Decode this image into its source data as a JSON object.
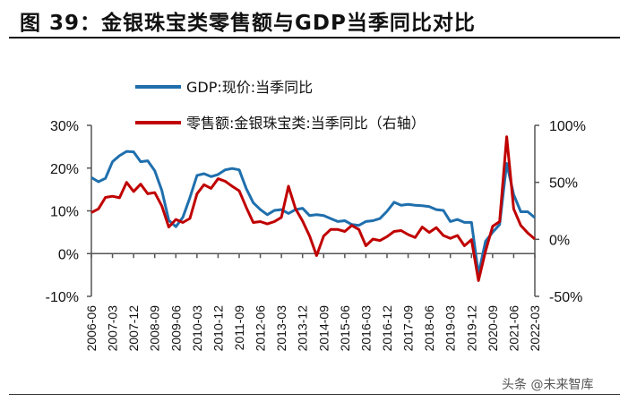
{
  "title": "图 39：金银珠宝类零售额与GDP当季同比对比",
  "watermark": "头条 @未来智库",
  "chart_data": {
    "type": "line",
    "title": "图 39：金银珠宝类零售额与GDP当季同比对比",
    "x": [
      "2006-06",
      "2006-09",
      "2006-12",
      "2007-03",
      "2007-06",
      "2007-09",
      "2007-12",
      "2008-03",
      "2008-06",
      "2008-09",
      "2008-12",
      "2009-03",
      "2009-06",
      "2009-09",
      "2009-12",
      "2010-03",
      "2010-06",
      "2010-09",
      "2010-12",
      "2011-03",
      "2011-06",
      "2011-09",
      "2011-12",
      "2012-03",
      "2012-06",
      "2012-09",
      "2012-12",
      "2013-03",
      "2013-06",
      "2013-09",
      "2013-12",
      "2014-03",
      "2014-06",
      "2014-09",
      "2014-12",
      "2015-03",
      "2015-06",
      "2015-09",
      "2015-12",
      "2016-03",
      "2016-06",
      "2016-09",
      "2016-12",
      "2017-03",
      "2017-06",
      "2017-09",
      "2017-12",
      "2018-03",
      "2018-06",
      "2018-09",
      "2018-12",
      "2019-03",
      "2019-06",
      "2019-09",
      "2019-12",
      "2020-03",
      "2020-06",
      "2020-09",
      "2020-12",
      "2021-03",
      "2021-06",
      "2021-09",
      "2021-12",
      "2022-03"
    ],
    "x_tick_labels": [
      "2006-06",
      "2007-03",
      "2007-12",
      "2008-09",
      "2009-06",
      "2010-03",
      "2010-12",
      "2011-09",
      "2012-06",
      "2013-03",
      "2013-12",
      "2014-09",
      "2015-06",
      "2016-03",
      "2016-12",
      "2017-09",
      "2018-06",
      "2019-03",
      "2019-12",
      "2020-09",
      "2021-06",
      "2022-03"
    ],
    "y_left": {
      "ylim": [
        -10,
        30
      ],
      "ticks": [
        "-10%",
        "0%",
        "10%",
        "20%",
        "30%"
      ]
    },
    "y_right": {
      "ylim": [
        -50,
        100
      ],
      "ticks": [
        "-50%",
        "0%",
        "50%",
        "100%"
      ]
    },
    "grid": false,
    "legend_position": "top",
    "series": [
      {
        "name": "GDP:现价:当季同比",
        "axis": "left",
        "color": "#1f6fad",
        "values": [
          17.8,
          16.8,
          17.6,
          21.5,
          22.9,
          23.9,
          23.8,
          21.5,
          21.7,
          19.4,
          14.8,
          7.8,
          6.3,
          8.5,
          13.1,
          18.3,
          18.7,
          18.0,
          18.5,
          19.6,
          19.9,
          19.6,
          15.2,
          11.9,
          10.3,
          9.1,
          10.1,
          10.3,
          9.4,
          10.3,
          10.6,
          8.9,
          9.1,
          8.9,
          8.2,
          7.5,
          7.7,
          6.8,
          6.6,
          7.5,
          7.7,
          8.2,
          9.9,
          12.0,
          11.3,
          11.5,
          11.3,
          11.2,
          11.0,
          10.3,
          10.1,
          7.5,
          8.0,
          7.3,
          7.3,
          -4.8,
          2.9,
          5.0,
          6.8,
          21.1,
          13.8,
          9.8,
          9.8,
          8.4
        ]
      },
      {
        "name": "零售额:金银珠宝类:当季同比（右轴）",
        "axis": "right",
        "color": "#c00000",
        "values": [
          23.5,
          26.7,
          36.8,
          37.8,
          36.5,
          50,
          42,
          48.4,
          40,
          41,
          29.4,
          10.8,
          17.5,
          14.8,
          18.3,
          40,
          47.9,
          44.7,
          53.2,
          51,
          46.6,
          42.6,
          28,
          14.8,
          15.6,
          13.5,
          15.6,
          19.3,
          46.6,
          26.7,
          16.1,
          2.9,
          -14.3,
          2.9,
          8.7,
          8.7,
          6.9,
          12.2,
          8.7,
          -5.6,
          0.3,
          -1.1,
          2.4,
          6.9,
          7.7,
          4.2,
          1.6,
          10.8,
          6.1,
          10.3,
          3.4,
          0.8,
          3.4,
          -5.6,
          -0.3,
          -36.2,
          -10.3,
          11.4,
          15.6,
          90,
          26.7,
          12.2,
          5.6,
          0.3
        ]
      }
    ]
  }
}
